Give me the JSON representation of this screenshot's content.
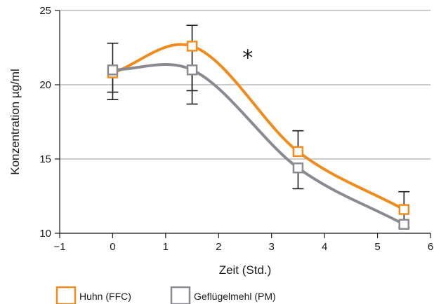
{
  "chart_data": {
    "type": "line",
    "title": "",
    "xlabel": "Zeit (Std.)",
    "ylabel": "Konzentration µg/ml",
    "xlim": [
      -1,
      6
    ],
    "ylim": [
      10,
      25
    ],
    "x_ticks": [
      -1,
      0,
      1,
      2,
      3,
      4,
      5,
      6
    ],
    "x_tick_labels": [
      "−1",
      "0",
      "1",
      "2",
      "3",
      "4",
      "5",
      "6"
    ],
    "y_ticks": [
      10,
      15,
      20,
      25
    ],
    "y_tick_labels": [
      "10",
      "15",
      "20",
      "25"
    ],
    "grid": "horizontal",
    "legend_position": "bottom-left",
    "annotation": {
      "text": "*",
      "x": 2.55,
      "y": 22.1
    },
    "series": [
      {
        "name": "Huhn (FFC)",
        "color": "#F08C1E",
        "x": [
          0,
          1.5,
          3.5,
          5.5
        ],
        "y": [
          20.8,
          22.6,
          15.5,
          11.6
        ],
        "err_low": [
          19.5,
          19.6,
          null,
          10.4
        ],
        "err_high": [
          null,
          24.0,
          16.9,
          12.8
        ]
      },
      {
        "name": "Geflügelmehl (PM)",
        "color": "#8A8A92",
        "x": [
          0,
          1.5,
          3.5,
          5.5
        ],
        "y": [
          21.0,
          21.0,
          14.4,
          10.6
        ],
        "err_low": [
          19.0,
          18.7,
          13.0,
          null
        ],
        "err_high": [
          22.8,
          null,
          null,
          null
        ]
      }
    ]
  }
}
